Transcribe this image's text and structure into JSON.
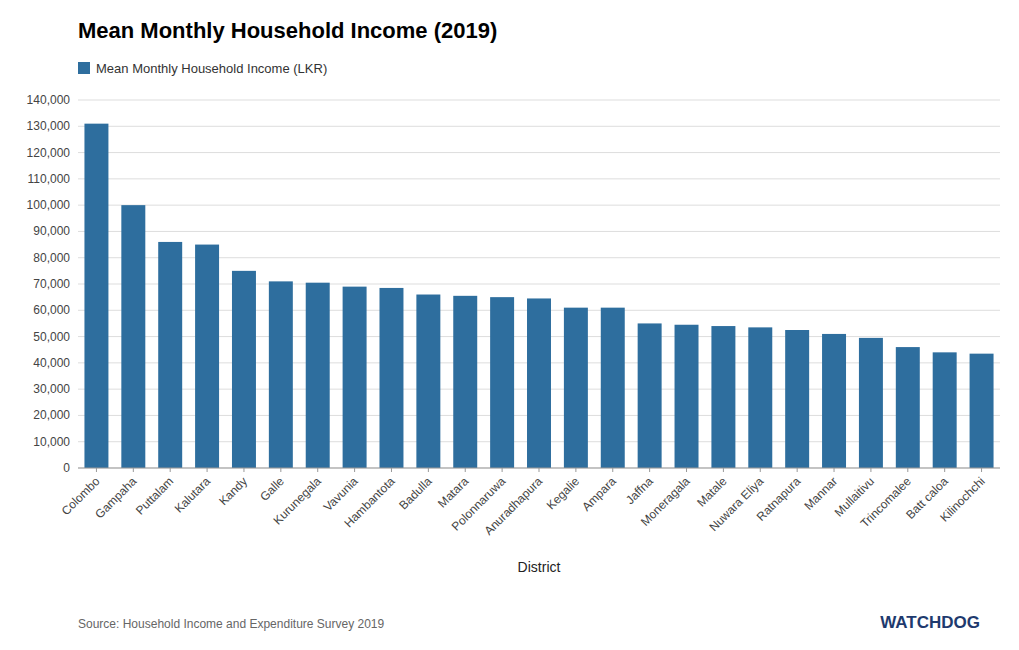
{
  "chart_data": {
    "type": "bar",
    "title": "Mean Monthly Household Income (2019)",
    "xlabel": "District",
    "categories": [
      "Colombo",
      "Gampaha",
      "Puttalam",
      "Kalutara",
      "Kandy",
      "Galle",
      "Kurunegala",
      "Vavunia",
      "Hambantota",
      "Badulla",
      "Matara",
      "Polonnaruwa",
      "Anuradhapura",
      "Kegalie",
      "Ampara",
      "Jaffna",
      "Moneragala",
      "Matale",
      "Nuwara Eliya",
      "Ratnapura",
      "Mannar",
      "Mullaitivu",
      "Trincomalee",
      "Batt caloa",
      "Kilinochchi"
    ],
    "series": [
      {
        "name": "Mean Monthly Household Income (LKR)",
        "color": "#2e6e9e",
        "values": [
          131000,
          100000,
          86000,
          85000,
          75000,
          71000,
          70500,
          69000,
          68500,
          66000,
          65500,
          65000,
          64500,
          61000,
          61000,
          55000,
          54500,
          54000,
          53500,
          52500,
          51000,
          49500,
          46000,
          44000,
          43500
        ]
      }
    ],
    "ylim": [
      0,
      140000
    ],
    "yticks": [
      0,
      {
        "value": 10000,
        "label": "10,000"
      },
      {
        "value": 20000,
        "label": "20,000"
      },
      {
        "value": 30000,
        "label": "30,000"
      },
      {
        "value": 40000,
        "label": "40,000"
      },
      {
        "value": 50000,
        "label": "50,000"
      },
      {
        "value": 60000,
        "label": "60,000"
      },
      {
        "value": 70000,
        "label": "70,000"
      },
      {
        "value": 80000,
        "label": "80,000"
      },
      {
        "value": 90000,
        "label": "90,000"
      },
      {
        "value": 100000,
        "label": "100,000"
      },
      {
        "value": 110000,
        "label": "110,000"
      },
      {
        "value": 120000,
        "label": "120,000"
      },
      {
        "value": 130000,
        "label": "130,000"
      },
      {
        "value": 140000,
        "label": "140,000"
      }
    ],
    "grid": true,
    "legend": "top-left",
    "annotations": [
      {
        "text": "Source: Household Income and Expenditure Survey 2019"
      },
      {
        "text": "WATCHDOG",
        "color": "#1e3a6e"
      }
    ]
  }
}
